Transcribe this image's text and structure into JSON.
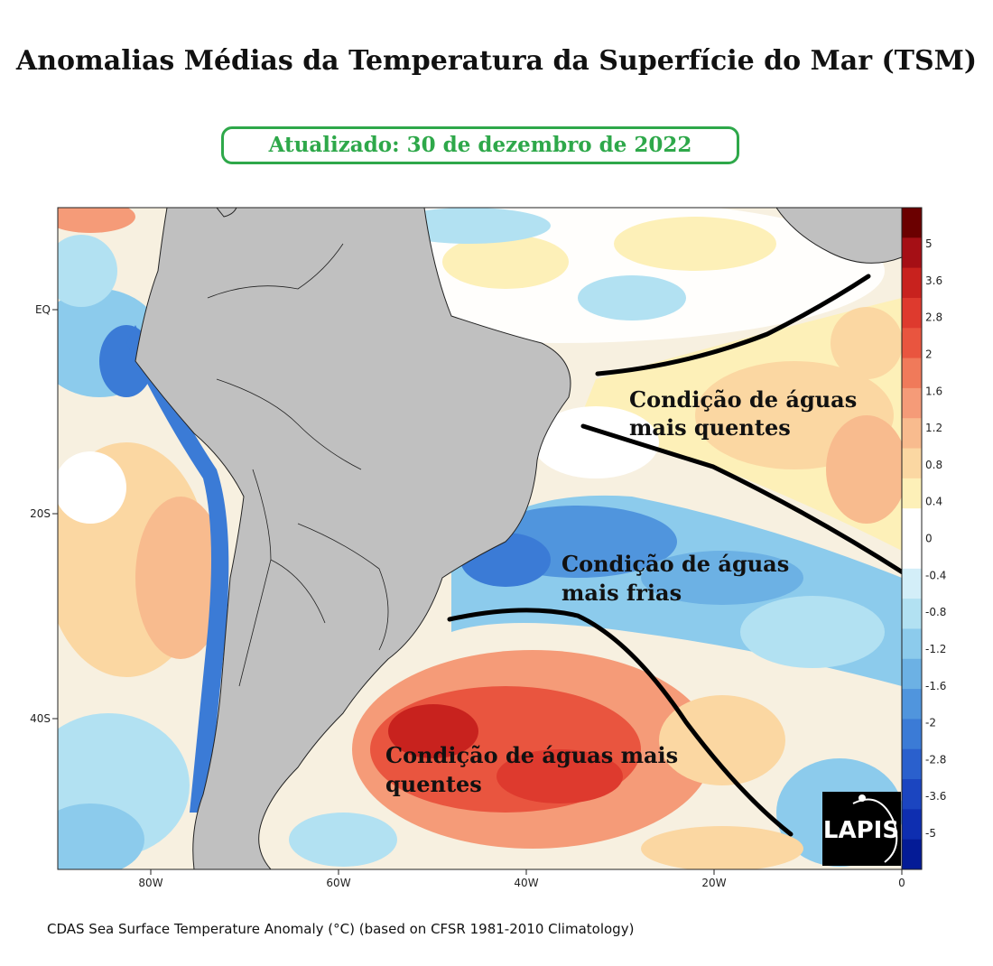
{
  "title": "Anomalias Médias da Temperatura da Superfície do Mar (TSM)",
  "updated": "Atualizado: 30 de dezembro de 2022",
  "caption": "CDAS Sea Surface Temperature Anomaly (°C) (based on CFSR 1981-2010 Climatology)",
  "logo_text": "LAPIS",
  "lat_labels": [
    "EQ",
    "20S",
    "40S"
  ],
  "lon_labels": [
    "80W",
    "60W",
    "40W",
    "20W",
    "0"
  ],
  "regions": [
    {
      "lines": [
        "Condição de águas",
        "mais quentes"
      ]
    },
    {
      "lines": [
        "Condição de águas",
        "mais frias"
      ]
    },
    {
      "lines": [
        "Condição de águas mais",
        "quentes"
      ]
    }
  ],
  "colorbar": {
    "labels": [
      "5",
      "3.6",
      "2.8",
      "2",
      "1.6",
      "1.2",
      "0.8",
      "0.4",
      "0",
      "-0.4",
      "-0.8",
      "-1.2",
      "-1.6",
      "-2",
      "-2.8",
      "-3.6",
      "-5"
    ],
    "colors": [
      "#6b0000",
      "#a50f15",
      "#c8221e",
      "#de3a2e",
      "#e9553f",
      "#f07a5a",
      "#f59b78",
      "#f8bb8e",
      "#fbd7a2",
      "#fdf0b8",
      "#ffffff",
      "#ffffff",
      "#d3eef8",
      "#b2e1f2",
      "#8ccbec",
      "#6cb1e4",
      "#5095dd",
      "#3b7bd6",
      "#2a60cd",
      "#1b45c0",
      "#0e2eb0",
      "#041b96"
    ]
  },
  "colors": {
    "land": "#c0c0c0",
    "ocean_base": "#f7f0e0",
    "updated_green": "#2ea84a"
  }
}
